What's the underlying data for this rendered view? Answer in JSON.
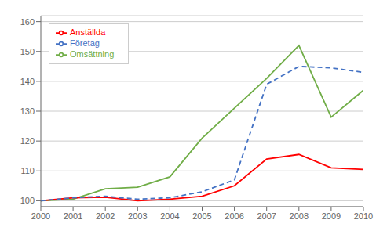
{
  "chart_data": {
    "type": "line",
    "x": [
      2000,
      2001,
      2002,
      2003,
      2004,
      2005,
      2006,
      2007,
      2008,
      2009,
      2010
    ],
    "series": [
      {
        "name": "Omsättning",
        "color": "#70ad47",
        "line_style": "solid",
        "values": [
          100,
          100.5,
          104,
          104.5,
          108,
          121,
          131,
          141,
          152,
          128,
          137
        ]
      },
      {
        "name": "Anställda",
        "color": "#ff0000",
        "line_style": "solid",
        "values": [
          100,
          101,
          101.2,
          100,
          100.5,
          101.5,
          105,
          114,
          115.5,
          111,
          110.5
        ]
      },
      {
        "name": "Företag",
        "color": "#4472c4",
        "line_style": "dashed",
        "values": [
          100,
          101,
          101.5,
          100.5,
          101,
          103,
          107,
          139,
          145,
          144.5,
          143
        ]
      }
    ],
    "xlim": [
      2000,
      2010
    ],
    "xticks": [
      2000,
      2001,
      2002,
      2003,
      2004,
      2005,
      2006,
      2007,
      2008,
      2009,
      2010
    ],
    "ylim": [
      98,
      162
    ],
    "yticks": [
      100,
      110,
      120,
      130,
      140,
      150,
      160
    ],
    "grid": true,
    "legend": "upper left"
  }
}
